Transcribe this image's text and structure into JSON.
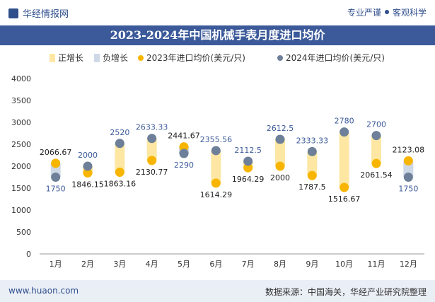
{
  "header": {
    "brand": "华经情报网",
    "tagline_left": "专业严谨",
    "tagline_right": "客观科学"
  },
  "footer": {
    "site": "www.huaon.com",
    "source": "数据来源：中国海关，华经产业研究院整理"
  },
  "colors": {
    "up": "#fde7a3",
    "down": "#cfd8e6",
    "s2023": "#f7b500",
    "s2024": "#6e7f99",
    "title_bg": "#3c5a9a"
  },
  "chart_data": {
    "type": "line",
    "title": "2023-2024年中国机械手表月度进口均价",
    "categories": [
      "1月",
      "2月",
      "3月",
      "4月",
      "5月",
      "6月",
      "7月",
      "8月",
      "9月",
      "10月",
      "11月",
      "12月"
    ],
    "ylim": [
      0,
      4000
    ],
    "yticks": [
      0,
      500,
      1000,
      1500,
      2000,
      2500,
      3000,
      3500,
      4000
    ],
    "legend": {
      "position": "top",
      "entries": [
        "正增长",
        "负增长",
        "2023年进口均价(美元/只)",
        "2024年进口均价(美元/只)"
      ]
    },
    "series": [
      {
        "name": "2023年进口均价(美元/只)",
        "values": [
          2066.67,
          1846.15,
          1863.16,
          2130.77,
          2441.67,
          1614.29,
          1964.29,
          2000,
          1787.5,
          1516.67,
          2061.54,
          2123.08
        ]
      },
      {
        "name": "2024年进口均价(美元/只)",
        "values": [
          1750,
          2000,
          2520,
          2633.33,
          2290,
          2355.56,
          2112.5,
          2612.5,
          2333.33,
          2780,
          2700,
          1750
        ]
      }
    ],
    "label_text": {
      "s2023": [
        "2066.67",
        "1846.15",
        "1863.16",
        "2130.77",
        "2441.67",
        "1614.29",
        "1964.29",
        "2000",
        "1787.5",
        "1516.67",
        "2061.54",
        "2123.08"
      ],
      "s2024": [
        "1750",
        "2000",
        "2520",
        "2633.33",
        "2290",
        "2355.56",
        "2112.5",
        "2612.5",
        "2333.33",
        "2780",
        "2700",
        "1750"
      ]
    },
    "grid": false
  }
}
